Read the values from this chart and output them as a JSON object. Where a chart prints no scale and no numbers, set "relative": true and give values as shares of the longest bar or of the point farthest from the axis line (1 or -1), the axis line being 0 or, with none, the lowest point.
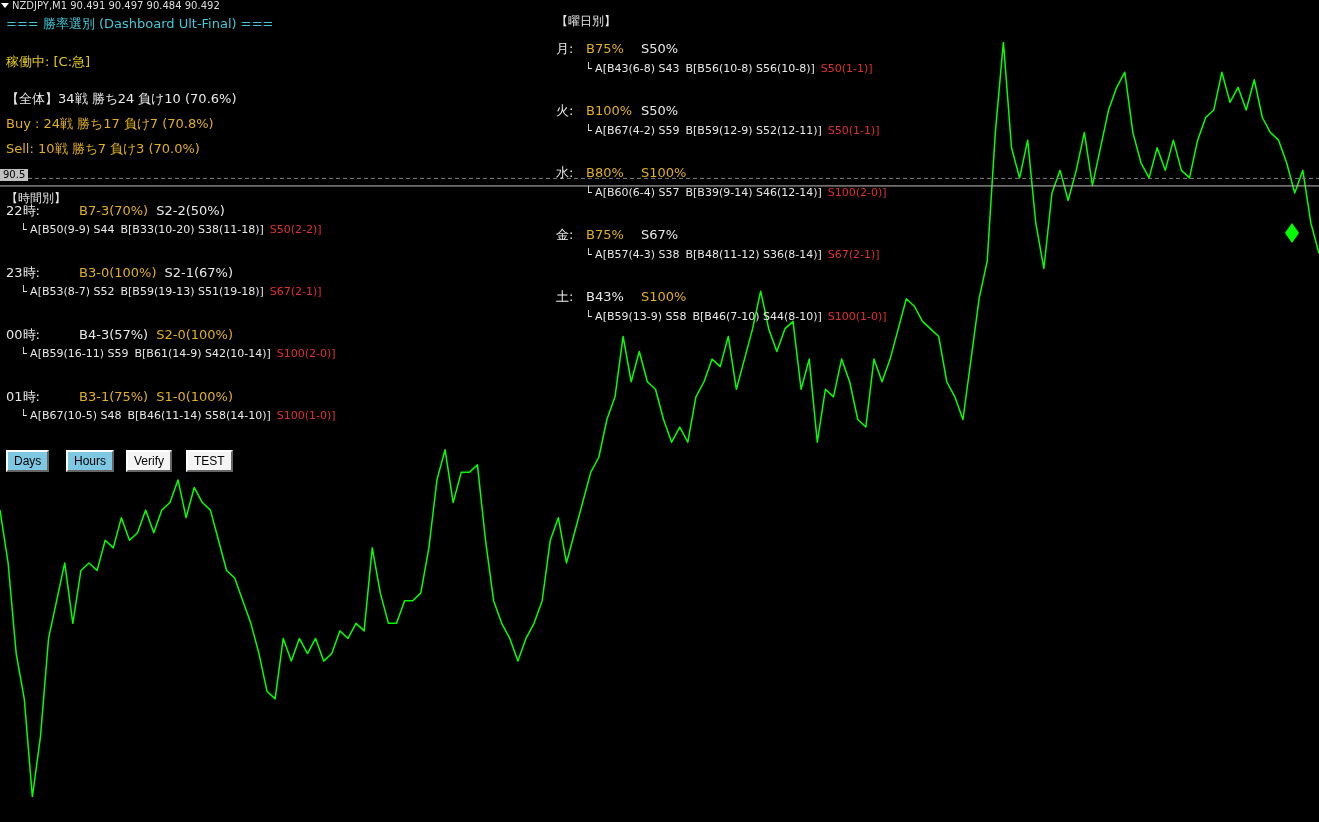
{
  "chart_data": {
    "type": "line",
    "relative": true,
    "color": "#00ff00",
    "marker": "none",
    "line_style": "solid",
    "legend": false,
    "categories": [
      null,
      null,
      null,
      null,
      null,
      null,
      null,
      null,
      null,
      null,
      null,
      null,
      null,
      null,
      null,
      null,
      null,
      null,
      null,
      null,
      null,
      null,
      null,
      null,
      null,
      null,
      null,
      null,
      null,
      null,
      null,
      null,
      null,
      null,
      null,
      null,
      null,
      null,
      null,
      null,
      null,
      null,
      null,
      null,
      null,
      null,
      null,
      null,
      null,
      null,
      null,
      null,
      null,
      null,
      null,
      null,
      null,
      null,
      null,
      null,
      null,
      null,
      null,
      null,
      null,
      null,
      null,
      null,
      null,
      null,
      null,
      null,
      null,
      null,
      null,
      null,
      null,
      null,
      null,
      null,
      null,
      null,
      null,
      null,
      null,
      null,
      null,
      null,
      null,
      null,
      null,
      null,
      null,
      null,
      null,
      null,
      null,
      null,
      null,
      null,
      null,
      null,
      null,
      null,
      null,
      null,
      null,
      null,
      null,
      null,
      null,
      null,
      null,
      null,
      null,
      null,
      null,
      null,
      null,
      null,
      null,
      null,
      null,
      null,
      null,
      null,
      null,
      null,
      null,
      null,
      null,
      null,
      null,
      null,
      null,
      null,
      null,
      null,
      null,
      null,
      null,
      null,
      null,
      null,
      null,
      null,
      null,
      null,
      null,
      null,
      null,
      null,
      null,
      null,
      null,
      null,
      null,
      null,
      null,
      null,
      null,
      null,
      null,
      null
    ],
    "values": [
      0.38,
      0.31,
      0.19,
      0.13,
      0.0,
      0.08,
      0.21,
      0.26,
      0.31,
      0.23,
      0.3,
      0.31,
      0.3,
      0.34,
      0.33,
      0.37,
      0.34,
      0.35,
      0.38,
      0.35,
      0.38,
      0.39,
      0.42,
      0.37,
      0.41,
      0.39,
      0.38,
      0.34,
      0.3,
      0.29,
      0.26,
      0.23,
      0.19,
      0.14,
      0.13,
      0.21,
      0.18,
      0.21,
      0.19,
      0.21,
      0.18,
      0.19,
      0.22,
      0.21,
      0.23,
      0.22,
      0.33,
      0.27,
      0.23,
      0.23,
      0.26,
      0.26,
      0.27,
      0.33,
      0.42,
      0.46,
      0.39,
      0.43,
      0.43,
      0.44,
      0.34,
      0.26,
      0.23,
      0.21,
      0.18,
      0.21,
      0.23,
      0.26,
      0.34,
      0.37,
      0.31,
      0.35,
      0.39,
      0.43,
      0.45,
      0.5,
      0.53,
      0.61,
      0.55,
      0.59,
      0.55,
      0.54,
      0.5,
      0.47,
      0.49,
      0.47,
      0.53,
      0.55,
      0.58,
      0.57,
      0.61,
      0.54,
      0.58,
      0.62,
      0.67,
      0.62,
      0.59,
      0.62,
      0.63,
      0.54,
      0.58,
      0.47,
      0.54,
      0.53,
      0.58,
      0.55,
      0.5,
      0.49,
      0.58,
      0.55,
      0.58,
      0.62,
      0.66,
      0.65,
      0.63,
      0.62,
      0.61,
      0.55,
      0.53,
      0.5,
      0.58,
      0.66,
      0.71,
      0.88,
      1.0,
      0.86,
      0.82,
      0.87,
      0.76,
      0.7,
      0.8,
      0.83,
      0.79,
      0.83,
      0.88,
      0.81,
      0.86,
      0.91,
      0.94,
      0.96,
      0.88,
      0.84,
      0.82,
      0.86,
      0.83,
      0.87,
      0.83,
      0.82,
      0.87,
      0.9,
      0.91,
      0.96,
      0.92,
      0.94,
      0.91,
      0.95,
      0.9,
      0.88,
      0.87,
      0.84,
      0.8,
      0.83,
      0.76,
      0.72
    ],
    "ref_lines": [
      {
        "axis": "y",
        "value": 0.81,
        "color": "#c0c0c0",
        "line_style": "solid"
      },
      {
        "axis": "y",
        "value": 0.82,
        "color": "#808080",
        "line_style": "dashed"
      }
    ],
    "annotations": [
      "NZDJPY,M1  90.491 90.497 90.484 90.492",
      "=== 勝率選別 (Dashboard Ult-Final) ===",
      "稼働中: [C:急]",
      "【全体】34戦 勝ち24 負け10 (70.6%)",
      "Buy : 24戦 勝ち17 負け7 (70.8%)",
      "Sell: 10戦 勝ち7 負け3 (70.0%)",
      "【時間別】",
      "22時:",
      "B7-3(70%)",
      "S2-2(50%)",
      "└ A[B50(9-9) S44",
      "B[B33(10-20) S38(11-18)]",
      "S50(2-2)]",
      "23時:",
      "B3-0(100%)",
      "S2-1(67%)",
      "└ A[B53(8-7) S52",
      "B[B59(19-13) S51(19-18)]",
      "S67(2-1)]",
      "00時:",
      "B4-3(57%)",
      "S2-0(100%)",
      "└ A[B59(16-11) S59",
      "B[B61(14-9) S42(10-14)]",
      "S100(2-0)]",
      "01時:",
      "B3-1(75%)",
      "S1-0(100%)",
      "└ A[B67(10-5) S48",
      "B[B46(11-14) S58(14-10)]",
      "S100(1-0)]",
      "【曜日別】",
      "月:",
      "B75%",
      "S50%",
      "└ A[B43(6-8) S43",
      "B[B56(10-8) S56(10-8)]",
      "S50(1-1)]",
      "火:",
      "B100%",
      "S50%",
      "└ A[B67(4-2) S59",
      "B[B59(12-9) S52(12-11)]",
      "S50(1-1)]",
      "水:",
      "B80%",
      "S100%",
      "└ A[B60(6-4) S57",
      "B[B39(9-14) S46(12-14)]",
      "S100(2-0)]",
      "金:",
      "B75%",
      "S67%",
      "└ A[B57(4-3) S38",
      "B[B48(11-12) S36(8-14)]",
      "S67(2-1)]",
      "土:",
      "B43%",
      "S100%",
      "└ A[B59(13-9) S58",
      "B[B46(7-10) S44(8-10)]",
      "S100(1-0)]",
      "Days",
      "Hours",
      "Verify",
      "TEST",
      "90.5"
    ]
  }
}
